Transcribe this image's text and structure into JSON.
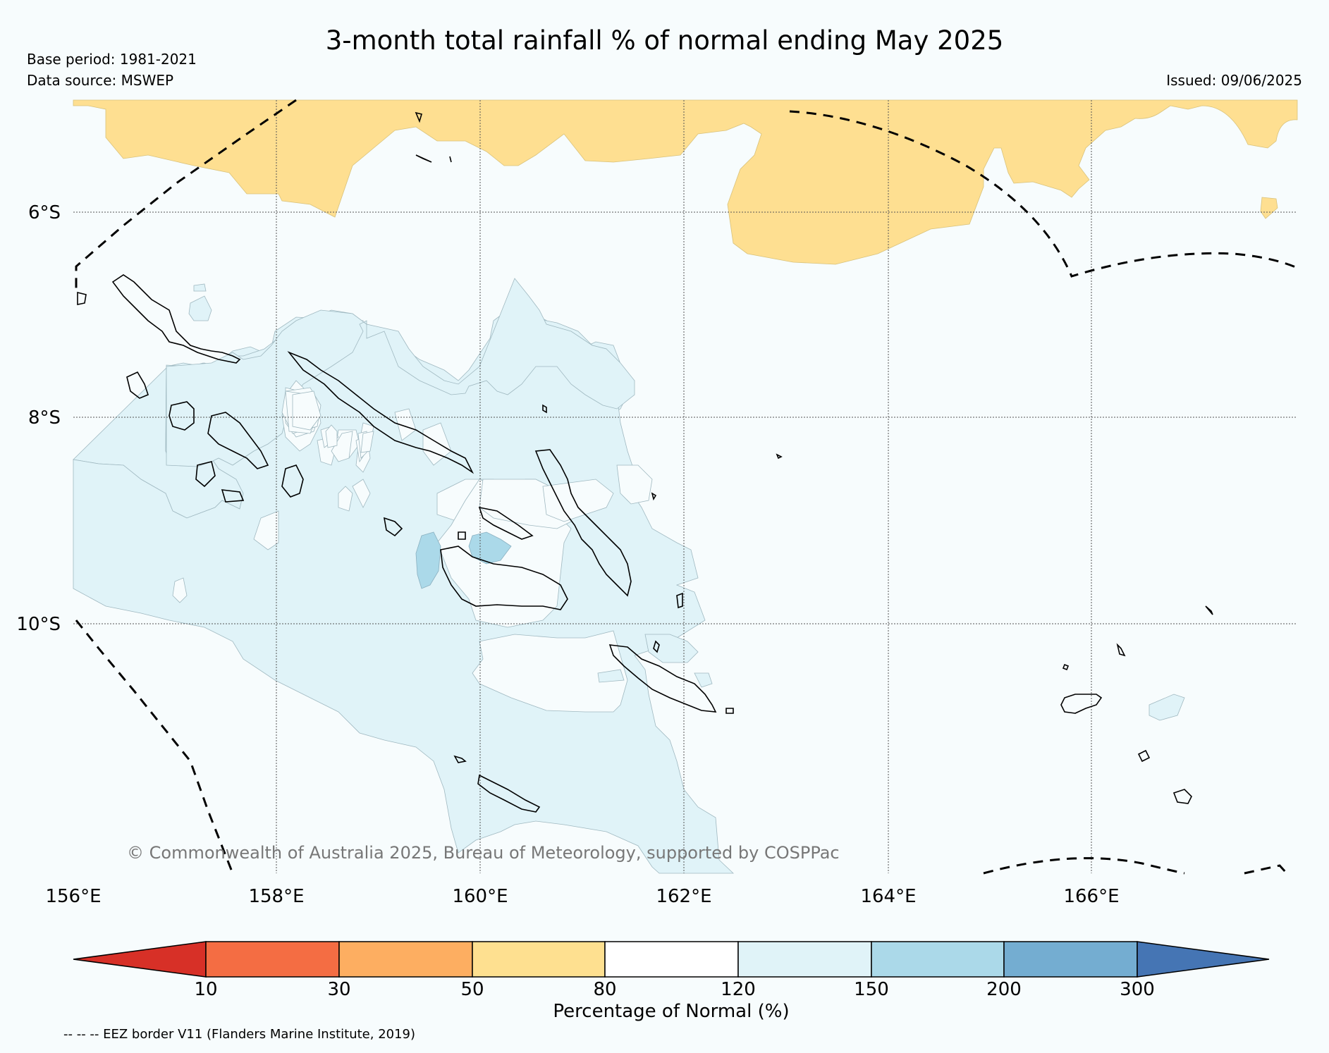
{
  "header": {
    "title": "3-month total rainfall % of normal ending May 2025",
    "base_period": "Base period: 1981-2021",
    "data_source": "Data source: MSWEP",
    "issued": "Issued: 09/06/2025"
  },
  "map": {
    "lon_labels": [
      "156°E",
      "158°E",
      "160°E",
      "162°E",
      "164°E",
      "166°E"
    ],
    "lat_labels": [
      "6°S",
      "8°S",
      "10°S"
    ],
    "copyright": "© Commonwealth of Australia 2025, Bureau of Meteorology, supported by COSPPac",
    "category_colors": {
      "50-80": "#fedf91",
      "80-120": "#f7fcfd",
      "120-150": "#e0f3f8",
      "150-200": "#abd9e9"
    },
    "eez_border_style": "dashed"
  },
  "colorbar": {
    "title": "Percentage of Normal (%)",
    "ticks": [
      "10",
      "30",
      "50",
      "80",
      "120",
      "150",
      "200",
      "300"
    ],
    "colors": [
      "#d73027",
      "#f46d43",
      "#fdae61",
      "#fee090",
      "#ffffff",
      "#e0f3f8",
      "#abd9e9",
      "#74add1",
      "#4575b4"
    ]
  },
  "footnote": "-- -- -- EEZ border V11 (Flanders Marine Institute, 2019)"
}
